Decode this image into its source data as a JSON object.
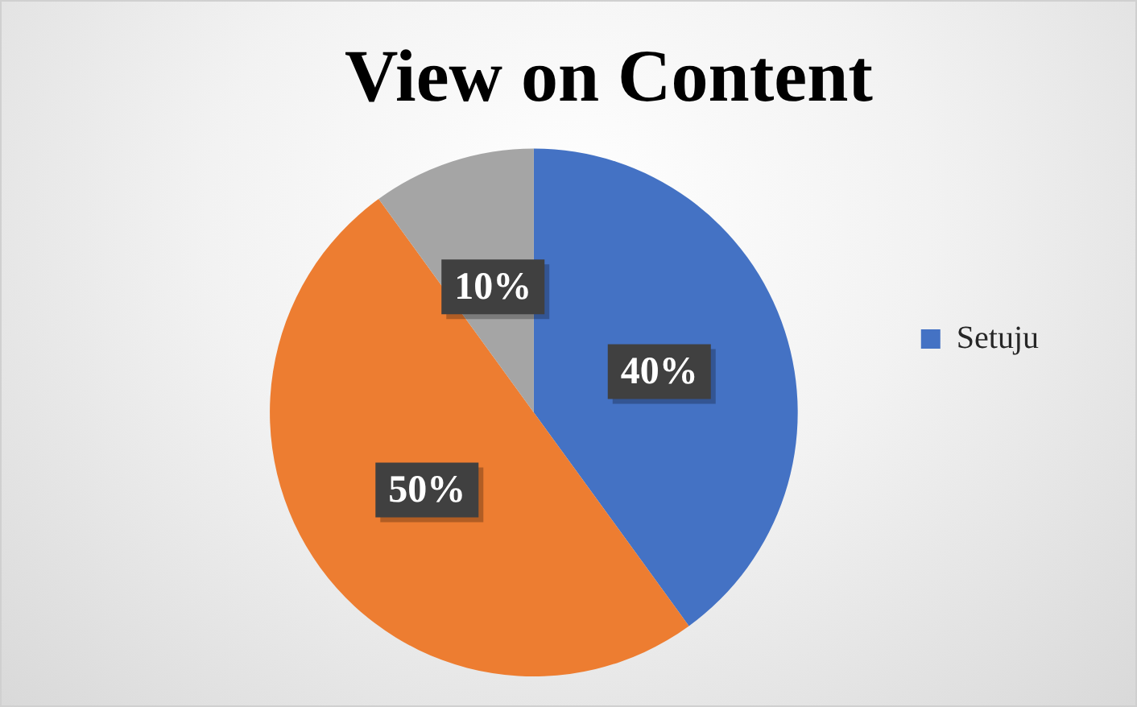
{
  "chart_data": {
    "type": "pie",
    "title": "View on Content",
    "categories": [
      "Setuju",
      null,
      null
    ],
    "values": [
      40,
      50,
      10
    ],
    "colors": [
      "#4472c4",
      "#ed7d31",
      "#a5a5a5"
    ],
    "value_labels": [
      "40%",
      "50%",
      "10%"
    ],
    "legend": "right"
  }
}
